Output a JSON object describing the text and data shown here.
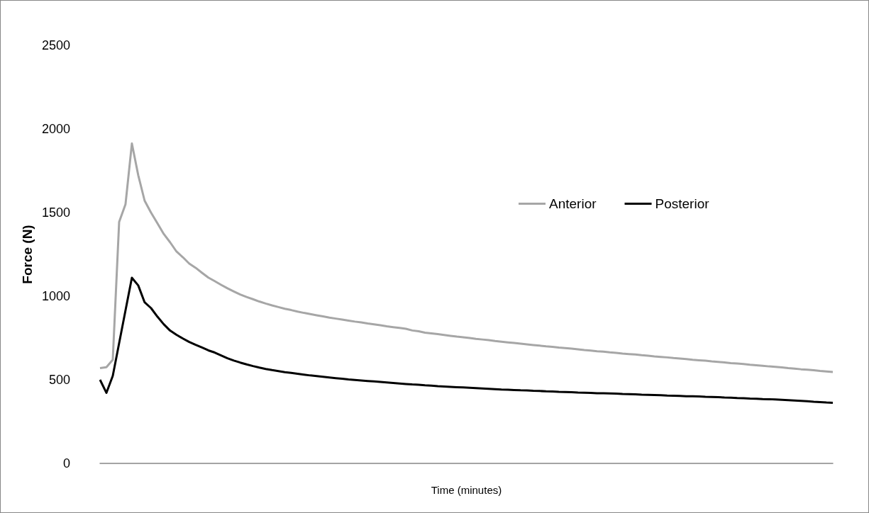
{
  "chart_data": {
    "type": "line",
    "xlabel": "Time (minutes)",
    "ylabel": "Force (N)",
    "legend": "right",
    "ylim": [
      0,
      2500
    ],
    "yticks": [
      0,
      500,
      1000,
      1500,
      2000,
      2500
    ],
    "categories": [
      null,
      null,
      null,
      null,
      null,
      null,
      null,
      null,
      null,
      null,
      null,
      null,
      null,
      null,
      null,
      null,
      null,
      null,
      null,
      null,
      null,
      null,
      null,
      null,
      null,
      null,
      null,
      null,
      null,
      null,
      null,
      null,
      null,
      null,
      null,
      null,
      null,
      null,
      null,
      null,
      null,
      null,
      null,
      null,
      null,
      null,
      null,
      null,
      null,
      null,
      null,
      null,
      null,
      null,
      null,
      null,
      null,
      null,
      null,
      null,
      null,
      null,
      null,
      null,
      null,
      null,
      null,
      null,
      null,
      null,
      null,
      null,
      null,
      null,
      null,
      null,
      null,
      null,
      null,
      null,
      null,
      null,
      null,
      null,
      null,
      null,
      null,
      null,
      null,
      null,
      null,
      null,
      null,
      null,
      null,
      null,
      null,
      null,
      null,
      null,
      null,
      null,
      null,
      null,
      null,
      null,
      null,
      null,
      null,
      null,
      null,
      null,
      null,
      null,
      null,
      null
    ],
    "series": [
      {
        "name": "Anterior",
        "color": "#a6a6a6",
        "values": [
          570,
          575,
          620,
          1444,
          1550,
          1913,
          1723,
          1571,
          1500,
          1436,
          1372,
          1322,
          1267,
          1233,
          1195,
          1170,
          1140,
          1111,
          1090,
          1068,
          1047,
          1028,
          1010,
          995,
          982,
          968,
          956,
          945,
          935,
          925,
          917,
          908,
          900,
          893,
          886,
          879,
          872,
          866,
          860,
          854,
          848,
          843,
          837,
          832,
          826,
          820,
          815,
          810,
          805,
          795,
          790,
          782,
          778,
          773,
          768,
          763,
          758,
          754,
          750,
          745,
          741,
          737,
          732,
          728,
          724,
          720,
          716,
          712,
          708,
          704,
          700,
          697,
          693,
          690,
          686,
          682,
          678,
          675,
          671,
          668,
          664,
          661,
          657,
          654,
          651,
          647,
          644,
          640,
          637,
          634,
          630,
          627,
          624,
          620,
          617,
          614,
          610,
          607,
          604,
          600,
          597,
          594,
          590,
          587,
          584,
          580,
          577,
          574,
          570,
          567,
          563,
          560,
          557,
          553,
          550,
          547
        ]
      },
      {
        "name": "Posterior",
        "color": "#000000",
        "values": [
          500,
          422,
          523,
          719,
          915,
          1110,
          1064,
          963,
          929,
          878,
          832,
          794,
          769,
          747,
          726,
          709,
          693,
          676,
          663,
          646,
          629,
          615,
          603,
          592,
          582,
          573,
          565,
          558,
          552,
          546,
          541,
          536,
          531,
          526,
          522,
          518,
          514,
          510,
          506,
          502,
          499,
          496,
          493,
          490,
          487,
          484,
          481,
          478,
          475,
          472,
          470,
          467,
          465,
          462,
          460,
          458,
          456,
          454,
          452,
          450,
          448,
          446,
          444,
          442,
          441,
          439,
          437,
          436,
          434,
          433,
          431,
          430,
          428,
          427,
          426,
          424,
          423,
          422,
          420,
          419,
          418,
          417,
          415,
          414,
          413,
          411,
          410,
          409,
          408,
          406,
          405,
          404,
          402,
          401,
          400,
          398,
          397,
          396,
          394,
          393,
          391,
          390,
          388,
          387,
          385,
          384,
          382,
          380,
          378,
          376,
          374,
          372,
          369,
          367,
          364,
          362
        ]
      }
    ]
  }
}
